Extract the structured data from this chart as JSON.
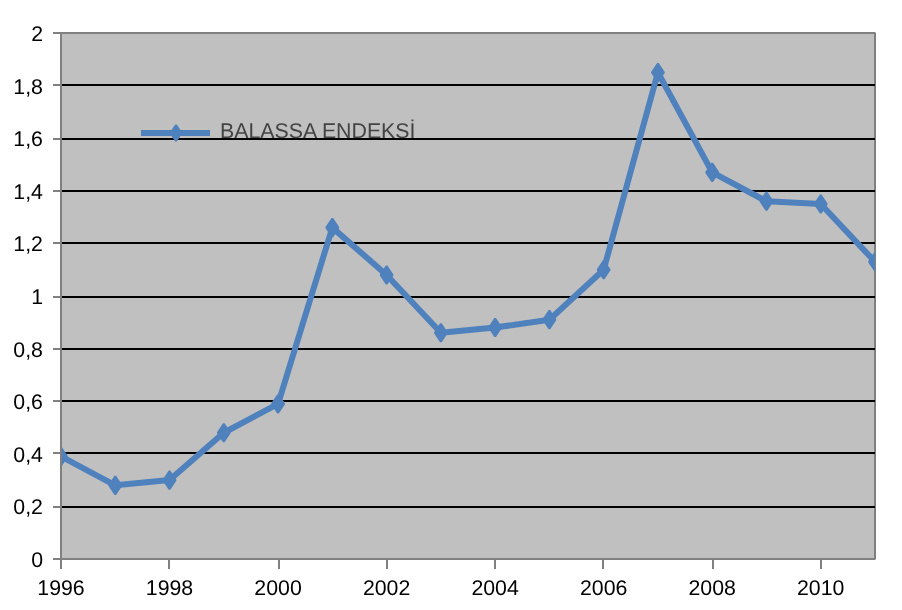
{
  "chart_data": {
    "type": "line",
    "x": [
      1996,
      1997,
      1998,
      1999,
      2000,
      2001,
      2002,
      2003,
      2004,
      2005,
      2006,
      2007,
      2008,
      2009,
      2010,
      2011
    ],
    "series": [
      {
        "name": "BALASSA ENDEKSİ",
        "color": "#4f81bd",
        "values": [
          0.39,
          0.28,
          0.3,
          0.48,
          0.59,
          1.26,
          1.08,
          0.86,
          0.88,
          0.91,
          1.1,
          1.85,
          1.47,
          1.36,
          1.35,
          1.13
        ]
      }
    ],
    "xlim": [
      1996,
      2011
    ],
    "xticks": [
      1996,
      1998,
      2000,
      2002,
      2004,
      2006,
      2008,
      2010
    ],
    "ylim": [
      0,
      2
    ],
    "yticks": [
      0,
      {
        "value": 0.2,
        "label": "0,2"
      },
      {
        "value": 0.4,
        "label": "0,4"
      },
      {
        "value": 0.6,
        "label": "0,6"
      },
      {
        "value": 0.8,
        "label": "0,8"
      },
      1,
      {
        "value": 1.2,
        "label": "1,2"
      },
      {
        "value": 1.4,
        "label": "1,4"
      },
      {
        "value": 1.6,
        "label": "1,6"
      },
      {
        "value": 1.8,
        "label": "1,8"
      },
      2
    ],
    "grid": "y",
    "legend": "top left",
    "marker": "diamond",
    "line_style": "solid"
  }
}
